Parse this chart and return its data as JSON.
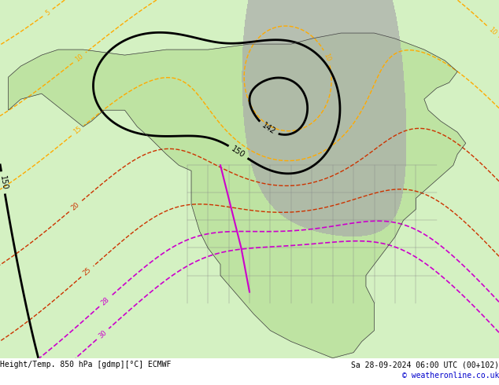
{
  "title_left": "Height/Temp. 850 hPa [gdmp][°C] ECMWF",
  "title_right": "Sa 28-09-2024 06:00 UTC (00+102)",
  "copyright": "© weatheronline.co.uk",
  "background_color": "#ffffff",
  "map_bg_color": "#e8e8e8",
  "land_color": "#d8e8c8",
  "ocean_color": "#e0e0e0",
  "z500_color": "#000000",
  "temp_pos_color": "#ff6600",
  "temp_neg_color": "#00aaff",
  "temp_zero_color": "#00cc00",
  "rain_color": "#888888",
  "hot_color": "#cc0000",
  "very_hot_color": "#cc00cc",
  "fig_width": 6.34,
  "fig_height": 4.9,
  "dpi": 100
}
